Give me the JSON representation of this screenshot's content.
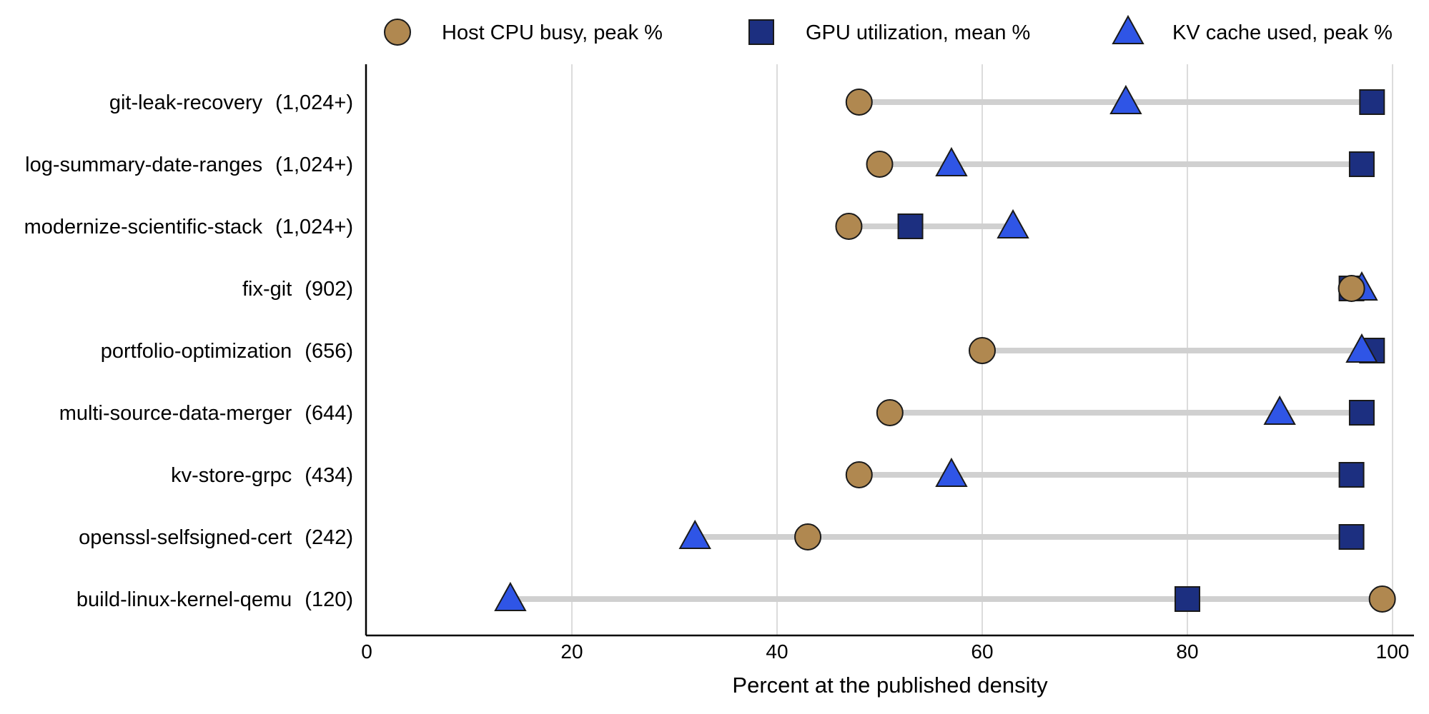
{
  "chart_data": {
    "type": "scatter",
    "subtype": "dumbbell",
    "xlabel": "Percent at the published density",
    "xlim": [
      0,
      100
    ],
    "xticks": [
      0,
      20,
      40,
      60,
      80,
      100
    ],
    "grid": "vertical",
    "legend_position": "top",
    "categories": [
      {
        "name": "git-leak-recovery",
        "count": "(1,024+)"
      },
      {
        "name": "log-summary-date-ranges",
        "count": "(1,024+)"
      },
      {
        "name": "modernize-scientific-stack",
        "count": "(1,024+)"
      },
      {
        "name": "fix-git",
        "count": "(902)"
      },
      {
        "name": "portfolio-optimization",
        "count": "(656)"
      },
      {
        "name": "multi-source-data-merger",
        "count": "(644)"
      },
      {
        "name": "kv-store-grpc",
        "count": "(434)"
      },
      {
        "name": "openssl-selfsigned-cert",
        "count": "(242)"
      },
      {
        "name": "build-linux-kernel-qemu",
        "count": "(120)"
      }
    ],
    "series": [
      {
        "name": "Host CPU busy, peak %",
        "marker": "circle",
        "color": "#b08850",
        "values": [
          48,
          50,
          47,
          96,
          60,
          51,
          48,
          43,
          99
        ]
      },
      {
        "name": "GPU utilization, mean %",
        "marker": "square",
        "color": "#1c2f80",
        "values": [
          98,
          97,
          53,
          96,
          98,
          97,
          96,
          96,
          80
        ]
      },
      {
        "name": "KV cache used, peak %",
        "marker": "triangle",
        "color": "#2f55e6",
        "values": [
          74,
          57,
          63,
          97,
          97,
          89,
          57,
          32,
          14
        ]
      }
    ],
    "connector_color": "#d0d0d0",
    "grid_color": "#dcdcdc"
  }
}
